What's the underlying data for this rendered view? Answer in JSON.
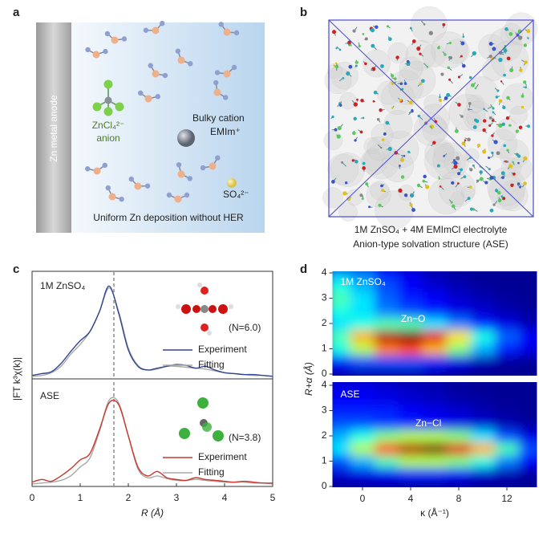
{
  "panel_labels": [
    "a",
    "b",
    "c",
    "d"
  ],
  "panel_a": {
    "anode": "Zn metal anode",
    "anion_formula": "ZnCl₄²⁻",
    "anion_label": "anion",
    "cation_label": "Bulky cation",
    "cation_formula": "EMIm⁺",
    "sulfate": "SO₄²⁻",
    "caption": "Uniform Zn deposition without HER"
  },
  "panel_b": {
    "caption_lines": [
      "1M ZnSO₄ + 4M EMImCl electrolyte",
      "Anion-type solvation structure (ASE)"
    ]
  },
  "chart_data": [
    {
      "type": "line",
      "title": "1M ZnSO₄",
      "y_label": "|FT k³χ(k)|",
      "annotation": "(N=6.0)",
      "x": [
        0,
        0.2,
        0.4,
        0.6,
        0.8,
        1.0,
        1.2,
        1.4,
        1.6,
        1.8,
        2.0,
        2.2,
        2.4,
        2.6,
        2.8,
        3.0,
        3.2,
        3.4,
        3.6,
        3.8,
        4.0,
        4.2,
        4.4,
        4.6,
        4.8,
        5.0
      ],
      "series": [
        {
          "name": "Experiment",
          "color": "#34468c",
          "values": [
            0.02,
            0.04,
            0.06,
            0.15,
            0.28,
            0.4,
            0.5,
            0.72,
            1.0,
            0.7,
            0.3,
            0.12,
            0.08,
            0.1,
            0.12,
            0.14,
            0.13,
            0.1,
            0.12,
            0.08,
            0.05,
            0.04,
            0.03,
            0.03,
            0.02,
            0.01
          ]
        },
        {
          "name": "Fitting",
          "color": "#a8a8a8",
          "values": [
            0.01,
            0.02,
            0.05,
            0.12,
            0.25,
            0.36,
            0.5,
            0.72,
            0.98,
            0.72,
            0.32,
            0.13,
            0.08,
            0.09,
            0.12,
            0.12,
            0.11,
            0.1,
            0.09,
            0.07,
            0.05,
            0.04,
            0.03,
            0.02,
            0.02,
            0.01
          ]
        }
      ],
      "reference_line_x": 1.7,
      "xlim": [
        0,
        5
      ],
      "ylim": [
        0,
        1.1
      ]
    },
    {
      "type": "line",
      "title": "ASE",
      "x_label": "R (Å)",
      "annotation": "(N=3.8)",
      "x": [
        0,
        0.2,
        0.4,
        0.6,
        0.8,
        1.0,
        1.2,
        1.4,
        1.6,
        1.8,
        2.0,
        2.2,
        2.4,
        2.6,
        2.8,
        3.0,
        3.2,
        3.4,
        3.6,
        3.8,
        4.0,
        4.2,
        4.4,
        4.6,
        4.8,
        5.0
      ],
      "series": [
        {
          "name": "Experiment",
          "color": "#c8372d",
          "values": [
            0.03,
            0.06,
            0.04,
            0.1,
            0.18,
            0.28,
            0.35,
            0.62,
            0.92,
            0.9,
            0.55,
            0.2,
            0.1,
            0.15,
            0.08,
            0.06,
            0.05,
            0.08,
            0.06,
            0.05,
            0.04,
            0.03,
            0.04,
            0.03,
            0.02,
            0.02
          ]
        },
        {
          "name": "Fitting",
          "color": "#a8a8a8",
          "values": [
            0.01,
            0.02,
            0.03,
            0.05,
            0.1,
            0.2,
            0.3,
            0.6,
            0.95,
            0.92,
            0.55,
            0.18,
            0.08,
            0.1,
            0.07,
            0.05,
            0.05,
            0.06,
            0.05,
            0.04,
            0.03,
            0.03,
            0.03,
            0.02,
            0.02,
            0.01
          ]
        }
      ],
      "reference_line_x": 1.7,
      "xlim": [
        0,
        5
      ],
      "ylim": [
        0,
        1.1
      ],
      "xticks": [
        0,
        1,
        2,
        3,
        4,
        5
      ]
    },
    {
      "type": "heatmap",
      "title": "1M  ZnSO₄",
      "y_label": "R+α (Å)",
      "annotation": "Zn−O",
      "colormap": "jet",
      "x": [
        -2,
        0,
        2,
        4,
        6,
        8,
        10,
        12,
        14
      ],
      "y": [
        0,
        0.5,
        1.0,
        1.5,
        2.0,
        2.5,
        3.0,
        3.5,
        4.0
      ],
      "values": [
        [
          0.05,
          0.05,
          0.05,
          0.05,
          0.05,
          0.03,
          0.02,
          0.02,
          0.02
        ],
        [
          0.15,
          0.2,
          0.2,
          0.2,
          0.15,
          0.1,
          0.05,
          0.03,
          0.02
        ],
        [
          0.4,
          0.55,
          0.75,
          0.8,
          0.7,
          0.5,
          0.3,
          0.15,
          0.1
        ],
        [
          0.45,
          0.7,
          0.95,
          1.0,
          0.9,
          0.65,
          0.4,
          0.22,
          0.12
        ],
        [
          0.35,
          0.4,
          0.45,
          0.45,
          0.35,
          0.25,
          0.15,
          0.1,
          0.05
        ],
        [
          0.4,
          0.35,
          0.25,
          0.2,
          0.15,
          0.1,
          0.08,
          0.05,
          0.03
        ],
        [
          0.45,
          0.35,
          0.22,
          0.15,
          0.12,
          0.08,
          0.05,
          0.03,
          0.02
        ],
        [
          0.4,
          0.3,
          0.2,
          0.12,
          0.08,
          0.05,
          0.03,
          0.02,
          0.02
        ],
        [
          0.3,
          0.25,
          0.15,
          0.1,
          0.05,
          0.03,
          0.02,
          0.02,
          0.02
        ]
      ],
      "xlim": [
        -2.5,
        14.5
      ],
      "ylim": [
        0,
        4
      ],
      "yticks": [
        0,
        1,
        2,
        3,
        4
      ]
    },
    {
      "type": "heatmap",
      "title": "ASE",
      "x_label": "κ (Å⁻¹)",
      "annotation": "Zn−Cl",
      "colormap": "jet",
      "x": [
        -2,
        0,
        2,
        4,
        6,
        8,
        10,
        12,
        14
      ],
      "y": [
        0,
        0.5,
        1.0,
        1.5,
        2.0,
        2.5,
        3.0,
        3.5,
        4.0
      ],
      "values": [
        [
          0.03,
          0.03,
          0.03,
          0.03,
          0.03,
          0.03,
          0.02,
          0.02,
          0.02
        ],
        [
          0.08,
          0.1,
          0.12,
          0.15,
          0.15,
          0.12,
          0.08,
          0.05,
          0.03
        ],
        [
          0.2,
          0.3,
          0.45,
          0.55,
          0.55,
          0.5,
          0.4,
          0.25,
          0.12
        ],
        [
          0.35,
          0.55,
          0.8,
          0.95,
          1.0,
          0.9,
          0.7,
          0.45,
          0.2
        ],
        [
          0.3,
          0.4,
          0.5,
          0.55,
          0.55,
          0.5,
          0.35,
          0.2,
          0.1
        ],
        [
          0.2,
          0.2,
          0.18,
          0.15,
          0.12,
          0.1,
          0.08,
          0.05,
          0.03
        ],
        [
          0.15,
          0.15,
          0.15,
          0.12,
          0.1,
          0.08,
          0.05,
          0.03,
          0.02
        ],
        [
          0.12,
          0.12,
          0.1,
          0.08,
          0.06,
          0.04,
          0.03,
          0.02,
          0.02
        ],
        [
          0.1,
          0.1,
          0.08,
          0.06,
          0.05,
          0.03,
          0.02,
          0.02,
          0.02
        ]
      ],
      "xlim": [
        -2.5,
        14.5
      ],
      "ylim": [
        0,
        4
      ],
      "yticks": [
        0,
        1,
        2,
        3,
        4
      ],
      "xticks": [
        0,
        4,
        8,
        12
      ]
    }
  ]
}
